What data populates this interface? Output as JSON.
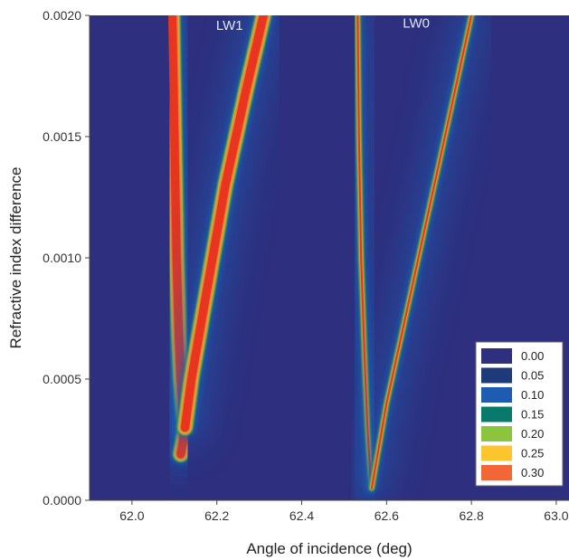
{
  "chart_data": {
    "type": "heatmap",
    "title": "",
    "xlabel": "Angle of incidence (deg)",
    "ylabel": "Refractive index difference",
    "xlim": [
      61.9,
      63.03
    ],
    "ylim": [
      0.0,
      0.002
    ],
    "x_ticks": [
      62.0,
      62.2,
      62.4,
      62.6,
      62.8,
      63.0
    ],
    "x_tick_labels": [
      "62.0",
      "62.2",
      "62.4",
      "62.6",
      "62.8",
      "63.0"
    ],
    "y_ticks": [
      0.0,
      0.0005,
      0.001,
      0.0015,
      0.002
    ],
    "y_tick_labels": [
      "0.0000",
      "0.0005",
      "0.0010",
      "0.0015",
      "0.0020"
    ],
    "grid": false,
    "legend_position": "bottom-right",
    "legend": [
      {
        "label": "0.00",
        "color": "#2e2f7e"
      },
      {
        "label": "0.05",
        "color": "#1f3a78"
      },
      {
        "label": "0.10",
        "color": "#1d5cb0"
      },
      {
        "label": "0.15",
        "color": "#087a6c"
      },
      {
        "label": "0.20",
        "color": "#8bc53f"
      },
      {
        "label": "0.25",
        "color": "#fcc42d"
      },
      {
        "label": "0.30",
        "color": "#f26638"
      }
    ],
    "annotations": [
      {
        "text": "LW1",
        "x": 62.23,
        "y": 0.00194
      },
      {
        "text": "LW0",
        "x": 62.67,
        "y": 0.00195
      }
    ],
    "ridges": [
      {
        "name": "LW1-left-branch",
        "points": [
          [
            62.095,
            0.002
          ],
          [
            62.1,
            0.0015
          ],
          [
            62.105,
            0.001
          ],
          [
            62.11,
            0.0007
          ],
          [
            62.115,
            0.0005
          ],
          [
            62.12,
            0.00038
          ],
          [
            62.125,
            0.0003
          ],
          [
            62.12,
            0.00024
          ],
          [
            62.115,
            0.00019
          ]
        ],
        "max_value": 0.3
      },
      {
        "name": "LW1-right-branch",
        "points": [
          [
            62.125,
            0.0003
          ],
          [
            62.14,
            0.0005
          ],
          [
            62.17,
            0.0008
          ],
          [
            62.22,
            0.0013
          ],
          [
            62.27,
            0.0017
          ],
          [
            62.31,
            0.002
          ]
        ],
        "max_value": 0.3
      },
      {
        "name": "LW0-left-branch",
        "points": [
          [
            62.532,
            0.002
          ],
          [
            62.535,
            0.0015
          ],
          [
            62.54,
            0.001
          ],
          [
            62.548,
            0.0006
          ],
          [
            62.555,
            0.0003
          ],
          [
            62.562,
            0.0001
          ],
          [
            62.565,
            5e-05
          ]
        ],
        "max_value": 0.3
      },
      {
        "name": "LW0-right-branch",
        "points": [
          [
            62.565,
            5e-05
          ],
          [
            62.6,
            0.0004
          ],
          [
            62.65,
            0.0008
          ],
          [
            62.7,
            0.0012
          ],
          [
            62.75,
            0.0016
          ],
          [
            62.8,
            0.002
          ]
        ],
        "max_value": 0.3
      }
    ]
  }
}
